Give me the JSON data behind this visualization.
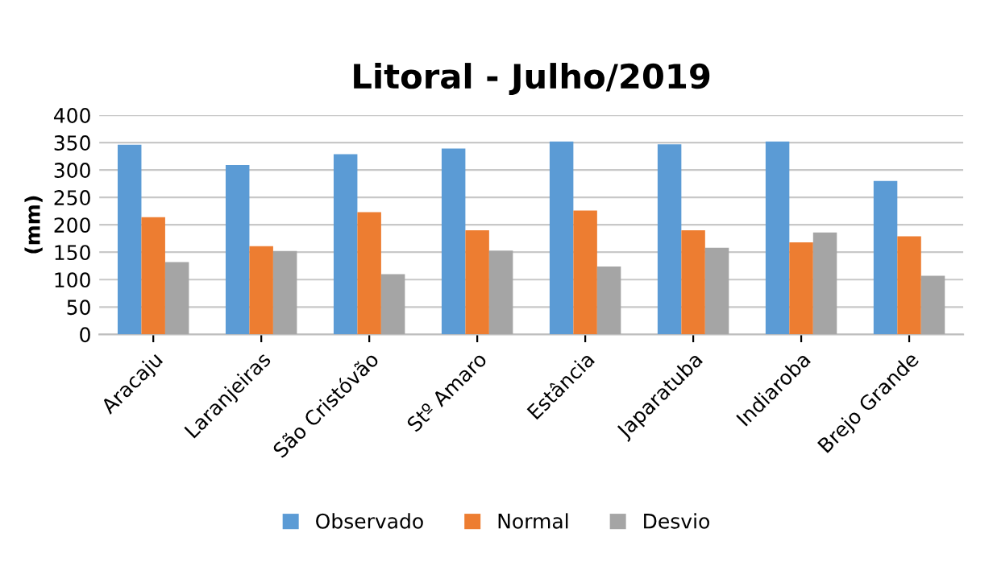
{
  "chart_data": {
    "type": "bar",
    "title": "Litoral - Julho/2019",
    "ylabel": "(mm)",
    "categories": [
      "Aracaju",
      "Laranjeiras",
      "São Cristóvão",
      "Stº Amaro",
      "Estância",
      "Japaratuba",
      "Indiaroba",
      "Brejo Grande"
    ],
    "series": [
      {
        "name": "Observado",
        "color": "#5b9bd5",
        "values": [
          346,
          309,
          329,
          339,
          352,
          347,
          352,
          280
        ]
      },
      {
        "name": "Normal",
        "color": "#ed7d31",
        "values": [
          214,
          161,
          223,
          190,
          226,
          190,
          168,
          179
        ]
      },
      {
        "name": "Desvio",
        "color": "#a5a5a5",
        "values": [
          132,
          152,
          110,
          153,
          124,
          158,
          186,
          107
        ]
      }
    ],
    "ylim": [
      0,
      400
    ],
    "yticks": [
      0,
      50,
      100,
      150,
      200,
      250,
      300,
      350,
      400
    ],
    "grid": "y",
    "legend": "bottom"
  }
}
